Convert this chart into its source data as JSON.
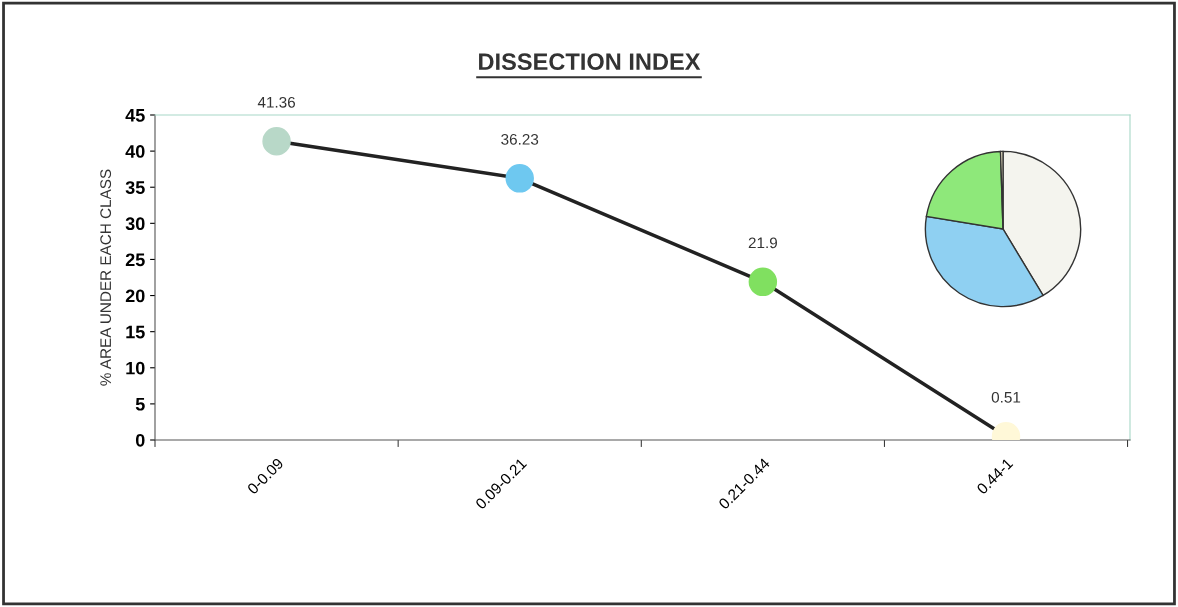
{
  "chart_data": [
    {
      "type": "line",
      "title": "DISSECTION INDEX",
      "ylabel": "% AREA UNDER EACH CLASS",
      "categories": [
        "0-0.09",
        "0.09-0.21",
        "0.21-0.44",
        "0.44-1"
      ],
      "series": [
        {
          "color": "#222222",
          "colors": [
            "#b8d8c8",
            "#6ec8f0",
            "#80e060",
            "#fff8d8"
          ],
          "values": [
            41.36,
            36.23,
            21.9,
            0.51
          ]
        }
      ],
      "ylim": [
        0,
        45
      ],
      "yticks": [
        0,
        5,
        10,
        15,
        20,
        25,
        30,
        35,
        40,
        45
      ],
      "marker": "circle",
      "line_style": "solid",
      "data_labels": true,
      "grid": false,
      "legend": false
    },
    {
      "type": "pie",
      "categories": [
        null,
        null,
        null,
        null
      ],
      "values": [
        41.36,
        36.23,
        21.9,
        0.51
      ],
      "colors": [
        "#f4f4ee",
        "#8fd0f2",
        "#8ee87a",
        "#fff8d8"
      ]
    }
  ]
}
